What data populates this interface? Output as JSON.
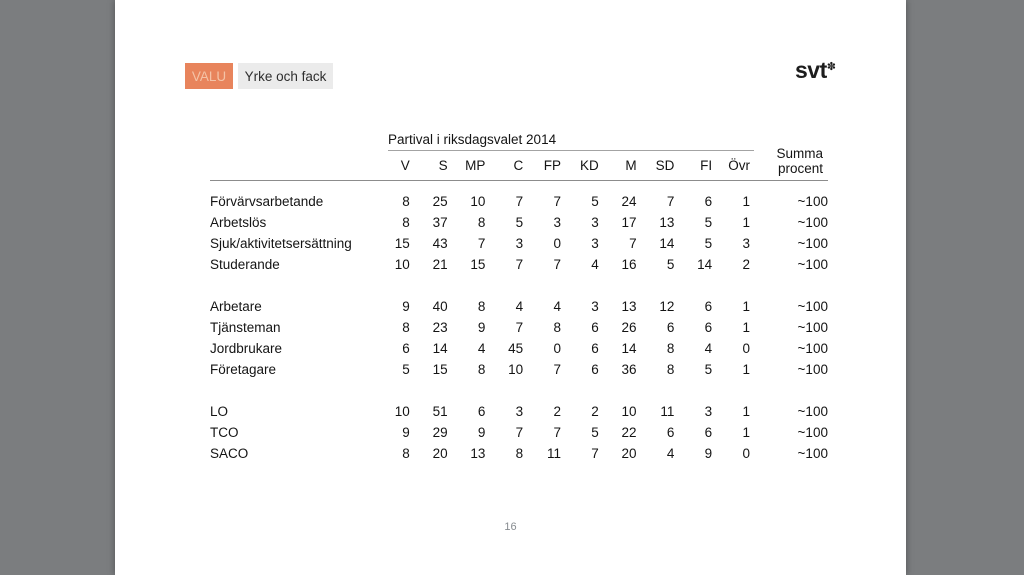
{
  "colors": {
    "background": "#7b7d7f",
    "slide": "#ffffff",
    "badge_bg": "#e8845c",
    "badge_fg": "#f4c3a7",
    "tab_bg": "#ebebeb",
    "rule": "#8c8c8c",
    "page_number_fg": "#878c90"
  },
  "header": {
    "badge_label": "VALU",
    "tab_label": "Yrke och fack",
    "logo_text": "svt",
    "logo_mark": "✽"
  },
  "table": {
    "span_header": "Partival i riksdagsvalet 2014",
    "summa_header": {
      "line1": "Summa",
      "line2": "procent"
    },
    "party_columns": [
      "V",
      "S",
      "MP",
      "C",
      "FP",
      "KD",
      "M",
      "SD",
      "FI",
      "Övr"
    ],
    "groups": [
      {
        "rows": [
          {
            "label": "Förvärvsarbetande",
            "values": [
              8,
              25,
              10,
              7,
              7,
              5,
              24,
              7,
              6,
              1
            ],
            "summa": "~100"
          },
          {
            "label": "Arbetslös",
            "values": [
              8,
              37,
              8,
              5,
              3,
              3,
              17,
              13,
              5,
              1
            ],
            "summa": "~100"
          },
          {
            "label": "Sjuk/aktivitetsersättning",
            "values": [
              15,
              43,
              7,
              3,
              0,
              3,
              7,
              14,
              5,
              3
            ],
            "summa": "~100"
          },
          {
            "label": "Studerande",
            "values": [
              10,
              21,
              15,
              7,
              7,
              4,
              16,
              5,
              14,
              2
            ],
            "summa": "~100"
          }
        ]
      },
      {
        "rows": [
          {
            "label": "Arbetare",
            "values": [
              9,
              40,
              8,
              4,
              4,
              3,
              13,
              12,
              6,
              1
            ],
            "summa": "~100"
          },
          {
            "label": "Tjänsteman",
            "values": [
              8,
              23,
              9,
              7,
              8,
              6,
              26,
              6,
              6,
              1
            ],
            "summa": "~100"
          },
          {
            "label": "Jordbrukare",
            "values": [
              6,
              14,
              4,
              45,
              0,
              6,
              14,
              8,
              4,
              0
            ],
            "summa": "~100"
          },
          {
            "label": "Företagare",
            "values": [
              5,
              15,
              8,
              10,
              7,
              6,
              36,
              8,
              5,
              1
            ],
            "summa": "~100"
          }
        ]
      },
      {
        "rows": [
          {
            "label": "LO",
            "values": [
              10,
              51,
              6,
              3,
              2,
              2,
              10,
              11,
              3,
              1
            ],
            "summa": "~100"
          },
          {
            "label": "TCO",
            "values": [
              9,
              29,
              9,
              7,
              7,
              5,
              22,
              6,
              6,
              1
            ],
            "summa": "~100"
          },
          {
            "label": "SACO",
            "values": [
              8,
              20,
              13,
              8,
              11,
              7,
              20,
              4,
              9,
              0
            ],
            "summa": "~100"
          }
        ]
      }
    ]
  },
  "footer": {
    "page_number": "16"
  }
}
